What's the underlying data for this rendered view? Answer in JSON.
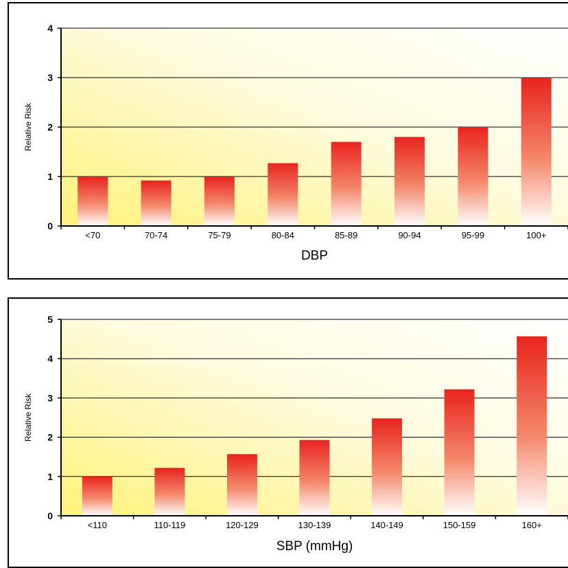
{
  "chart_data": [
    {
      "type": "bar",
      "categories": [
        "<70",
        "70-74",
        "75-79",
        "80-84",
        "85-89",
        "90-94",
        "95-99",
        "100+"
      ],
      "values": [
        1.0,
        0.92,
        1.0,
        1.27,
        1.7,
        1.8,
        2.0,
        3.0
      ],
      "xlabel": "DBP",
      "ylabel": "Relative Risk",
      "ylim": [
        0,
        4
      ],
      "yticks": [
        "0",
        "1",
        "2",
        "3",
        "4"
      ],
      "grid": true
    },
    {
      "type": "bar",
      "categories": [
        "<110",
        "110-119",
        "120-129",
        "130-139",
        "140-149",
        "150-159",
        "160+"
      ],
      "values": [
        1.0,
        1.22,
        1.57,
        1.93,
        2.48,
        3.22,
        4.57
      ],
      "xlabel": "SBP (mmHg)",
      "ylabel": "Relative Risk",
      "ylim": [
        0,
        5
      ],
      "yticks": [
        "0",
        "1",
        "2",
        "3",
        "4",
        "5"
      ],
      "grid": true
    }
  ],
  "colors": {
    "bar_top": "#e8241f",
    "bar_bottom": "#ffffff",
    "plot_bg_start": "#fff27a",
    "plot_bg_end": "#ffffff",
    "gridline": "#000000"
  }
}
